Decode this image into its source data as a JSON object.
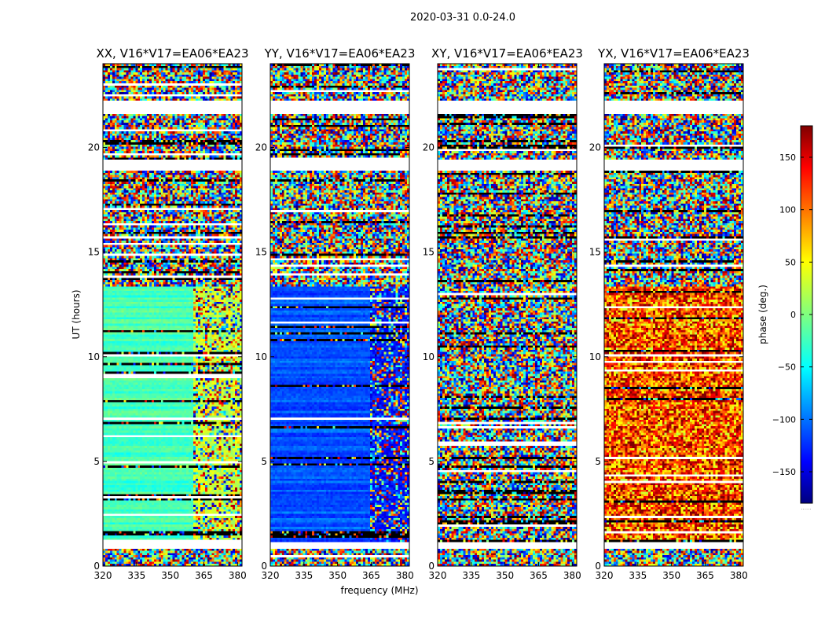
{
  "figure": {
    "suptitle": "2020-03-31 0.0-24.0",
    "xlabel": "frequency (MHz)",
    "ylabel": "UT (hours)",
    "colorbar_label": "phase (deg.)",
    "colorbar_footer": "......",
    "colormap": [
      "#00007f",
      "#0000ff",
      "#007fff",
      "#00ffff",
      "#7fff7f",
      "#ffff00",
      "#ff7f00",
      "#ff0000",
      "#7f0000"
    ]
  },
  "chart_data": {
    "type": "heatmap",
    "x_range": [
      320,
      382
    ],
    "y_range": [
      0,
      24
    ],
    "x_ticks": [
      320,
      335,
      350,
      365,
      380
    ],
    "y_ticks": [
      0,
      5,
      10,
      15,
      20
    ],
    "colorbar_range": [
      -180,
      180
    ],
    "colorbar_ticks": [
      -150,
      -100,
      -50,
      0,
      50,
      100,
      150
    ],
    "colorbar_tick_labels": [
      "−150",
      "−100",
      "−50",
      "0",
      "50",
      "100",
      "150"
    ],
    "missing_bands_hours": [
      [
        0.8,
        1.2
      ],
      [
        18.9,
        19.4
      ],
      [
        21.6,
        22.2
      ]
    ],
    "panels": [
      {
        "title": "XX, V16*V17=EA06*EA23",
        "pol": "XX",
        "mean_phase_deg": -20,
        "mean_phase_upper_deg": 25,
        "freq_split_mhz": 360,
        "coherent_hours": [
          1.2,
          13.4
        ]
      },
      {
        "title": "YY, V16*V17=EA06*EA23",
        "pol": "YY",
        "mean_phase_deg": -105,
        "mean_phase_upper_deg": -130,
        "freq_split_mhz": 364,
        "coherent_hours": [
          1.2,
          13.4
        ]
      },
      {
        "title": "XY, V16*V17=EA06*EA23",
        "pol": "XY",
        "mean_phase_deg": null,
        "mean_phase_upper_deg": null,
        "freq_split_mhz": null,
        "coherent_hours": null
      },
      {
        "title": "YX, V16*V17=EA06*EA23",
        "pol": "YX",
        "mean_phase_deg": 110,
        "mean_phase_upper_deg": null,
        "freq_split_mhz": null,
        "coherent_hours": [
          1.2,
          13.4
        ]
      }
    ]
  }
}
